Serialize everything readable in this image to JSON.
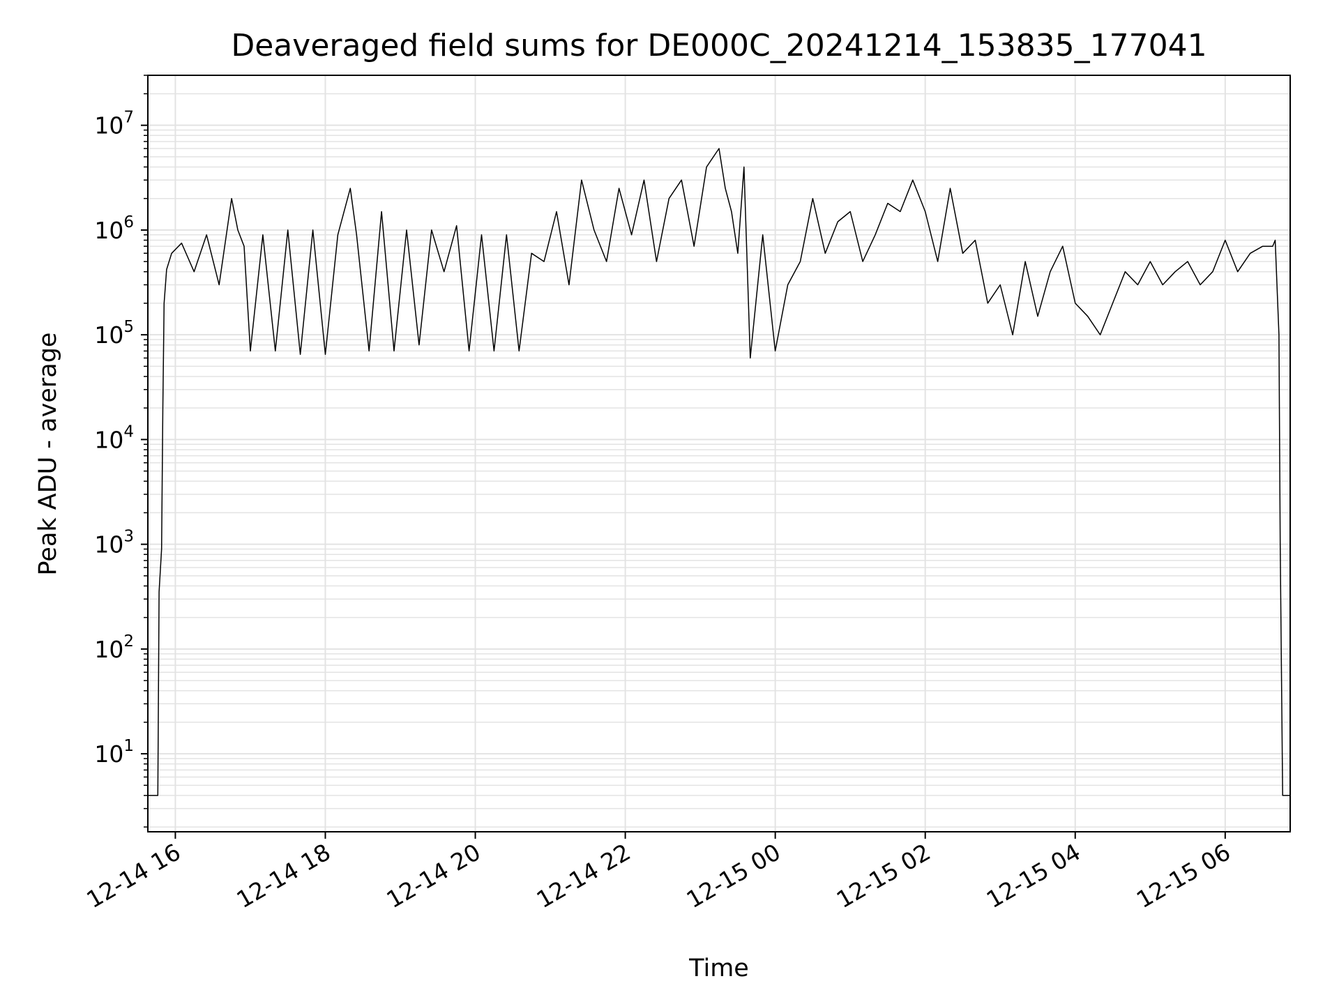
{
  "chart_data": {
    "type": "line",
    "title": "Deaveraged field sums for DE000C_20241214_153835_177041",
    "xlabel": "Time",
    "ylabel": "Peak ADU - average",
    "yscale": "log",
    "ylim": [
      1.8,
      30000000
    ],
    "xlim": [
      "12-14 15:38",
      "12-15 06:52"
    ],
    "grid": true,
    "line_color": "#000000",
    "grid_color": "#e3e3e3",
    "x_ticks": [
      "12-14 16",
      "12-14 18",
      "12-14 20",
      "12-14 22",
      "12-15 00",
      "12-15 02",
      "12-15 04",
      "12-15 06"
    ],
    "y_ticks": [
      {
        "base": "10",
        "exp": "1"
      },
      {
        "base": "10",
        "exp": "2"
      },
      {
        "base": "10",
        "exp": "3"
      },
      {
        "base": "10",
        "exp": "4"
      },
      {
        "base": "10",
        "exp": "5"
      },
      {
        "base": "10",
        "exp": "6"
      },
      {
        "base": "10",
        "exp": "7"
      }
    ],
    "series": [
      {
        "x": [
          "12-14 15:38",
          "12-14 15:46",
          "12-14 15:47",
          "12-14 15:49",
          "12-14 15:50",
          "12-14 15:51",
          "12-14 15:53",
          "12-14 15:57",
          "12-14 16:05",
          "12-14 16:15",
          "12-14 16:25",
          "12-14 16:35",
          "12-14 16:45",
          "12-14 16:50",
          "12-14 16:55",
          "12-14 17:00",
          "12-14 17:10",
          "12-14 17:20",
          "12-14 17:30",
          "12-14 17:40",
          "12-14 17:50",
          "12-14 18:00",
          "12-14 18:10",
          "12-14 18:20",
          "12-14 18:25",
          "12-14 18:35",
          "12-14 18:45",
          "12-14 18:55",
          "12-14 19:05",
          "12-14 19:15",
          "12-14 19:25",
          "12-14 19:35",
          "12-14 19:45",
          "12-14 19:55",
          "12-14 20:05",
          "12-14 20:15",
          "12-14 20:25",
          "12-14 20:35",
          "12-14 20:45",
          "12-14 20:55",
          "12-14 21:05",
          "12-14 21:15",
          "12-14 21:25",
          "12-14 21:35",
          "12-14 21:45",
          "12-14 21:55",
          "12-14 22:05",
          "12-14 22:15",
          "12-14 22:25",
          "12-14 22:35",
          "12-14 22:45",
          "12-14 22:55",
          "12-14 23:05",
          "12-14 23:15",
          "12-14 23:20",
          "12-14 23:25",
          "12-14 23:30",
          "12-14 23:35",
          "12-14 23:40",
          "12-14 23:50",
          "12-15 00:00",
          "12-15 00:10",
          "12-15 00:20",
          "12-15 00:30",
          "12-15 00:40",
          "12-15 00:50",
          "12-15 01:00",
          "12-15 01:10",
          "12-15 01:20",
          "12-15 01:30",
          "12-15 01:40",
          "12-15 01:50",
          "12-15 02:00",
          "12-15 02:10",
          "12-15 02:20",
          "12-15 02:30",
          "12-15 02:40",
          "12-15 02:50",
          "12-15 03:00",
          "12-15 03:10",
          "12-15 03:20",
          "12-15 03:30",
          "12-15 03:40",
          "12-15 03:50",
          "12-15 04:00",
          "12-15 04:10",
          "12-15 04:20",
          "12-15 04:30",
          "12-15 04:40",
          "12-15 04:50",
          "12-15 05:00",
          "12-15 05:10",
          "12-15 05:20",
          "12-15 05:30",
          "12-15 05:40",
          "12-15 05:50",
          "12-15 06:00",
          "12-15 06:10",
          "12-15 06:20",
          "12-15 06:30",
          "12-15 06:38",
          "12-15 06:40",
          "12-15 06:43",
          "12-15 06:44",
          "12-15 06:46",
          "12-15 06:47",
          "12-15 06:52"
        ],
        "y": [
          4,
          4,
          350,
          900,
          20000,
          200000,
          420000,
          600000,
          750000,
          400000,
          900000,
          300000,
          2000000,
          1000000,
          700000,
          70000,
          900000,
          70000,
          1000000,
          65000,
          1000000,
          65000,
          900000,
          2500000,
          900000,
          70000,
          1500000,
          70000,
          1000000,
          80000,
          1000000,
          400000,
          1100000,
          70000,
          900000,
          70000,
          900000,
          70000,
          600000,
          500000,
          1500000,
          300000,
          3000000,
          1000000,
          500000,
          2500000,
          900000,
          3000000,
          500000,
          2000000,
          3000000,
          700000,
          4000000,
          6000000,
          2500000,
          1500000,
          600000,
          4000000,
          60000,
          900000,
          70000,
          300000,
          500000,
          2000000,
          600000,
          1200000,
          1500000,
          500000,
          900000,
          1800000,
          1500000,
          3000000,
          1500000,
          500000,
          2500000,
          600000,
          800000,
          200000,
          300000,
          100000,
          500000,
          150000,
          400000,
          700000,
          200000,
          150000,
          100000,
          200000,
          400000,
          300000,
          500000,
          300000,
          400000,
          500000,
          300000,
          400000,
          800000,
          400000,
          600000,
          700000,
          700000,
          800000,
          100000,
          1000,
          4,
          4,
          4
        ]
      }
    ]
  }
}
